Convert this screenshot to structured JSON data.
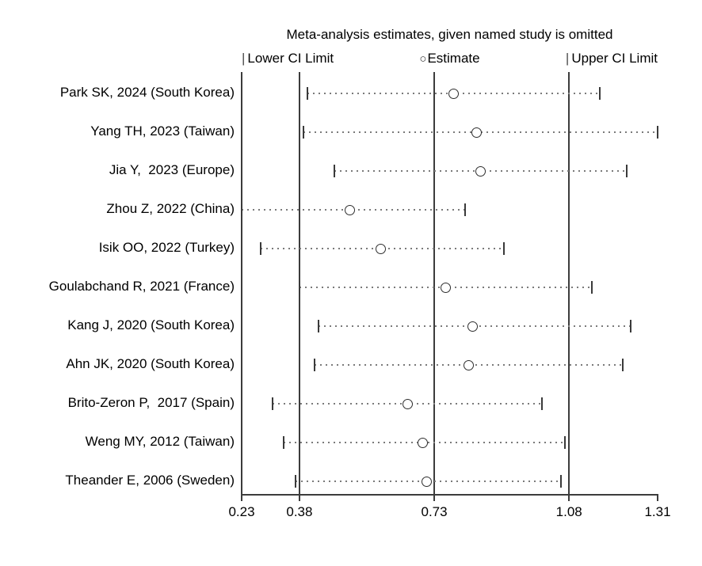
{
  "chart_data": {
    "type": "scatter",
    "variant": "leave-one-out-forest-plot",
    "title": "Meta-analysis estimates, given named study is omitted",
    "legend": {
      "lower": {
        "glyph": "|",
        "label": "Lower CI Limit"
      },
      "estimate": {
        "glyph": "○",
        "label": "Estimate"
      },
      "upper": {
        "glyph": "|",
        "label": "Upper CI Limit"
      }
    },
    "xlim": [
      0.23,
      1.31
    ],
    "x_ticks": [
      "0.23",
      "0.38",
      "0.73",
      "1.08",
      "1.31"
    ],
    "reference_lines": [
      0.38,
      0.73,
      1.08
    ],
    "left_frame_line": 0.23,
    "grid": false,
    "legend_position": "top",
    "studies": [
      {
        "label": "Park SK, 2024 (South Korea)",
        "lower": 0.4,
        "estimate": 0.78,
        "upper": 1.16
      },
      {
        "label": "Yang TH, 2023 (Taiwan)",
        "lower": 0.39,
        "estimate": 0.84,
        "upper": 1.31
      },
      {
        "label": "Jia Y,  2023 (Europe)",
        "lower": 0.47,
        "estimate": 0.85,
        "upper": 1.23
      },
      {
        "label": "Zhou Z, 2022 (China)",
        "lower": 0.23,
        "estimate": 0.51,
        "upper": 0.81
      },
      {
        "label": "Isik OO, 2022 (Turkey)",
        "lower": 0.28,
        "estimate": 0.59,
        "upper": 0.91
      },
      {
        "label": "Goulabchand R, 2021 (France)",
        "lower": 0.38,
        "estimate": 0.76,
        "upper": 1.14
      },
      {
        "label": "Kang J, 2020 (South Korea)",
        "lower": 0.43,
        "estimate": 0.83,
        "upper": 1.24
      },
      {
        "label": "Ahn JK, 2020 (South Korea)",
        "lower": 0.42,
        "estimate": 0.82,
        "upper": 1.22
      },
      {
        "label": "Brito-Zeron P,  2017 (Spain)",
        "lower": 0.31,
        "estimate": 0.66,
        "upper": 1.01
      },
      {
        "label": "Weng MY, 2012 (Taiwan)",
        "lower": 0.34,
        "estimate": 0.7,
        "upper": 1.07
      },
      {
        "label": "Theander E, 2006 (Sweden)",
        "lower": 0.37,
        "estimate": 0.71,
        "upper": 1.06
      }
    ],
    "colors": {
      "text": "#000000",
      "reference_line": "#3c3c3c",
      "ci_dotted_line": "#7a7a7a",
      "marker_outline": "#2e2e2e",
      "background": "#ffffff"
    }
  }
}
